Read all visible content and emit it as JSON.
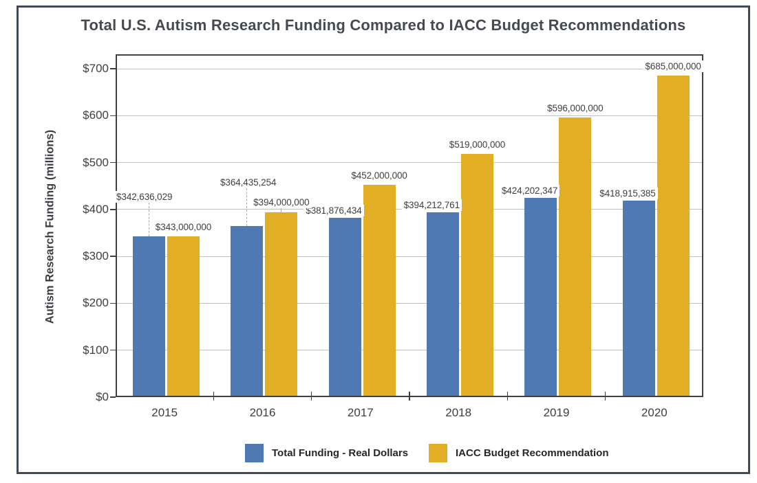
{
  "chart_data": {
    "type": "bar",
    "title": "Total U.S. Autism Research Funding Compared to IACC Budget Recommendations",
    "xlabel": "",
    "ylabel": "Autism Research Funding (millions)",
    "ylim": [
      0,
      700
    ],
    "y_tick_interval": 100,
    "y_tick_labels": [
      "$0",
      "$100",
      "$200",
      "$300",
      "$400",
      "$500",
      "$600",
      "$700"
    ],
    "grid": true,
    "legend_position": "bottom",
    "categories": [
      "2015",
      "2016",
      "2017",
      "2018",
      "2019",
      "2020"
    ],
    "series": [
      {
        "name": "Total Funding - Real Dollars",
        "color": "#4E79B2",
        "values_millions": [
          342.636029,
          364.435254,
          381.876434,
          394.212761,
          424.202347,
          418.915385
        ],
        "labels": [
          "$342,636,029",
          "$364,435,254",
          "$381,876,434",
          "$394,212,761",
          "$424,202,347",
          "$418,915,385"
        ]
      },
      {
        "name": "IACC Budget Recommendation",
        "color": "#E1AE24",
        "values_millions": [
          343,
          394,
          452,
          519,
          596,
          685
        ],
        "labels": [
          "$343,000,000",
          "$394,000,000",
          "$452,000,000",
          "$519,000,000",
          "$596,000,000",
          "$685,000,000"
        ]
      }
    ],
    "label_placements": [
      [
        {
          "mode": "raised",
          "x": 166,
          "top": 278,
          "leader": true
        },
        {
          "mode": "raised",
          "x": 317,
          "top": 257,
          "leader": true
        },
        {
          "mode": "bar-right"
        },
        {
          "mode": "bar-right"
        },
        {
          "mode": "bar-right"
        },
        {
          "mode": "bar-right"
        }
      ],
      [
        {
          "mode": "center"
        },
        {
          "mode": "center-raised",
          "top": 286,
          "leader": true
        },
        {
          "mode": "center"
        },
        {
          "mode": "center"
        },
        {
          "mode": "center"
        },
        {
          "mode": "center"
        }
      ]
    ]
  }
}
